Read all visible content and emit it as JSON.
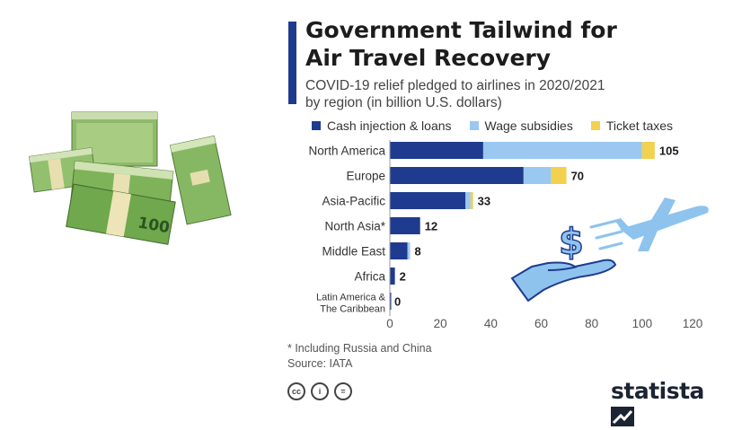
{
  "title_line1": "Government Tailwind for",
  "title_line2": "Air Travel Recovery",
  "subtitle_line1": "COVID-19 relief pledged to airlines in 2020/2021",
  "subtitle_line2": "by region (in billion U.S. dollars)",
  "footnote": "* Including Russia and China",
  "source": "Source: IATA",
  "brand": "statista",
  "license_icons": [
    "cc",
    "i",
    "="
  ],
  "colors": {
    "cash": "#1f3b8f",
    "wage": "#9ac8f0",
    "ticket": "#f2d14f",
    "accent": "#1f3b8f"
  },
  "chart_data": {
    "type": "bar",
    "orientation": "horizontal",
    "stacked": true,
    "categories": [
      "North America",
      "Europe",
      "Asia-Pacific",
      "North Asia*",
      "Middle East",
      "Africa",
      "Latin America & The Caribbean"
    ],
    "series": [
      {
        "name": "Cash injection & loans",
        "color": "#1f3b8f",
        "values": [
          37,
          53,
          30,
          12,
          7,
          2,
          0
        ]
      },
      {
        "name": "Wage subsidies",
        "color": "#9ac8f0",
        "values": [
          63,
          11,
          2,
          0,
          1,
          0,
          0
        ]
      },
      {
        "name": "Ticket taxes",
        "color": "#f2d14f",
        "values": [
          5,
          6,
          1,
          0,
          0,
          0,
          0
        ]
      }
    ],
    "totals": [
      105,
      70,
      33,
      12,
      8,
      2,
      0
    ],
    "xlim": [
      0,
      120
    ],
    "xticks": [
      0,
      20,
      40,
      60,
      80,
      100,
      120
    ],
    "legend_position": "top",
    "grid": false
  }
}
